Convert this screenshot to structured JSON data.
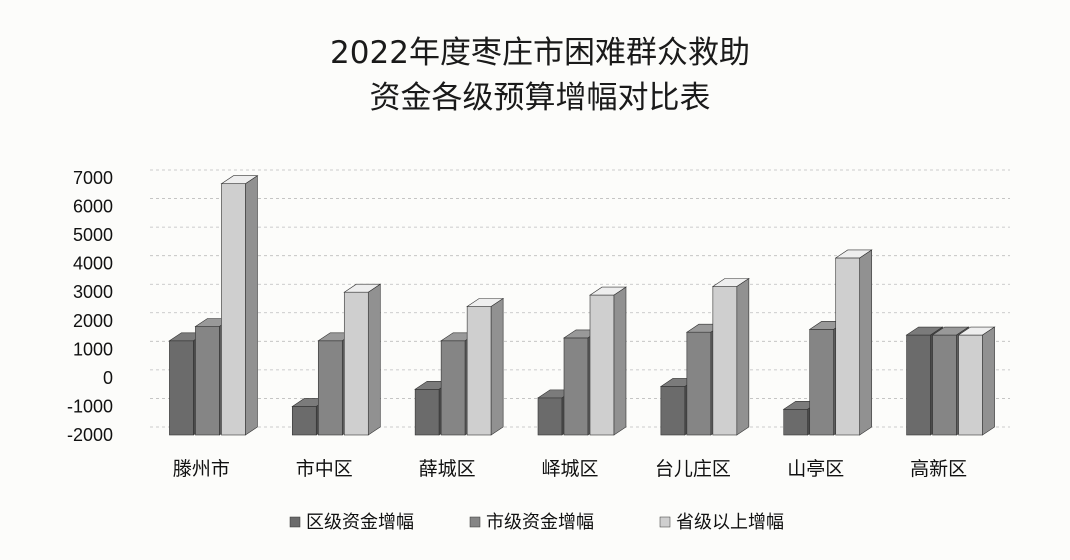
{
  "chart_data": {
    "type": "bar",
    "title_lines": [
      "2022年度枣庄市困难群众救助",
      "资金各级预算增幅对比表"
    ],
    "categories": [
      "滕州市",
      "市中区",
      "薛城区",
      "峄城区",
      "台儿庄区",
      "山亭区",
      "高新区"
    ],
    "series": [
      {
        "name": "区级资金增幅",
        "values": [
          1300,
          -1000,
          -400,
          -700,
          -300,
          -1100,
          1500
        ]
      },
      {
        "name": "市级资金增幅",
        "values": [
          1800,
          1300,
          1300,
          1400,
          1600,
          1700,
          1500
        ]
      },
      {
        "name": "省级以上增幅",
        "values": [
          6800,
          3000,
          2500,
          2900,
          3200,
          4200,
          1500
        ]
      }
    ],
    "y_ticks": [
      "7000",
      "6000",
      "5000",
      "4000",
      "3000",
      "2000",
      "1000",
      "0",
      "-1000",
      "-2000"
    ],
    "ylim": [
      -2000,
      7000
    ],
    "grid": true,
    "legend_position": "bottom",
    "colors": {
      "series1": "#6b6b6b",
      "series2": "#858585",
      "series3": "#cfcfcf",
      "grid": "#bdbdbd",
      "axis_text": "#111111",
      "title": "#1a1a1a"
    }
  }
}
